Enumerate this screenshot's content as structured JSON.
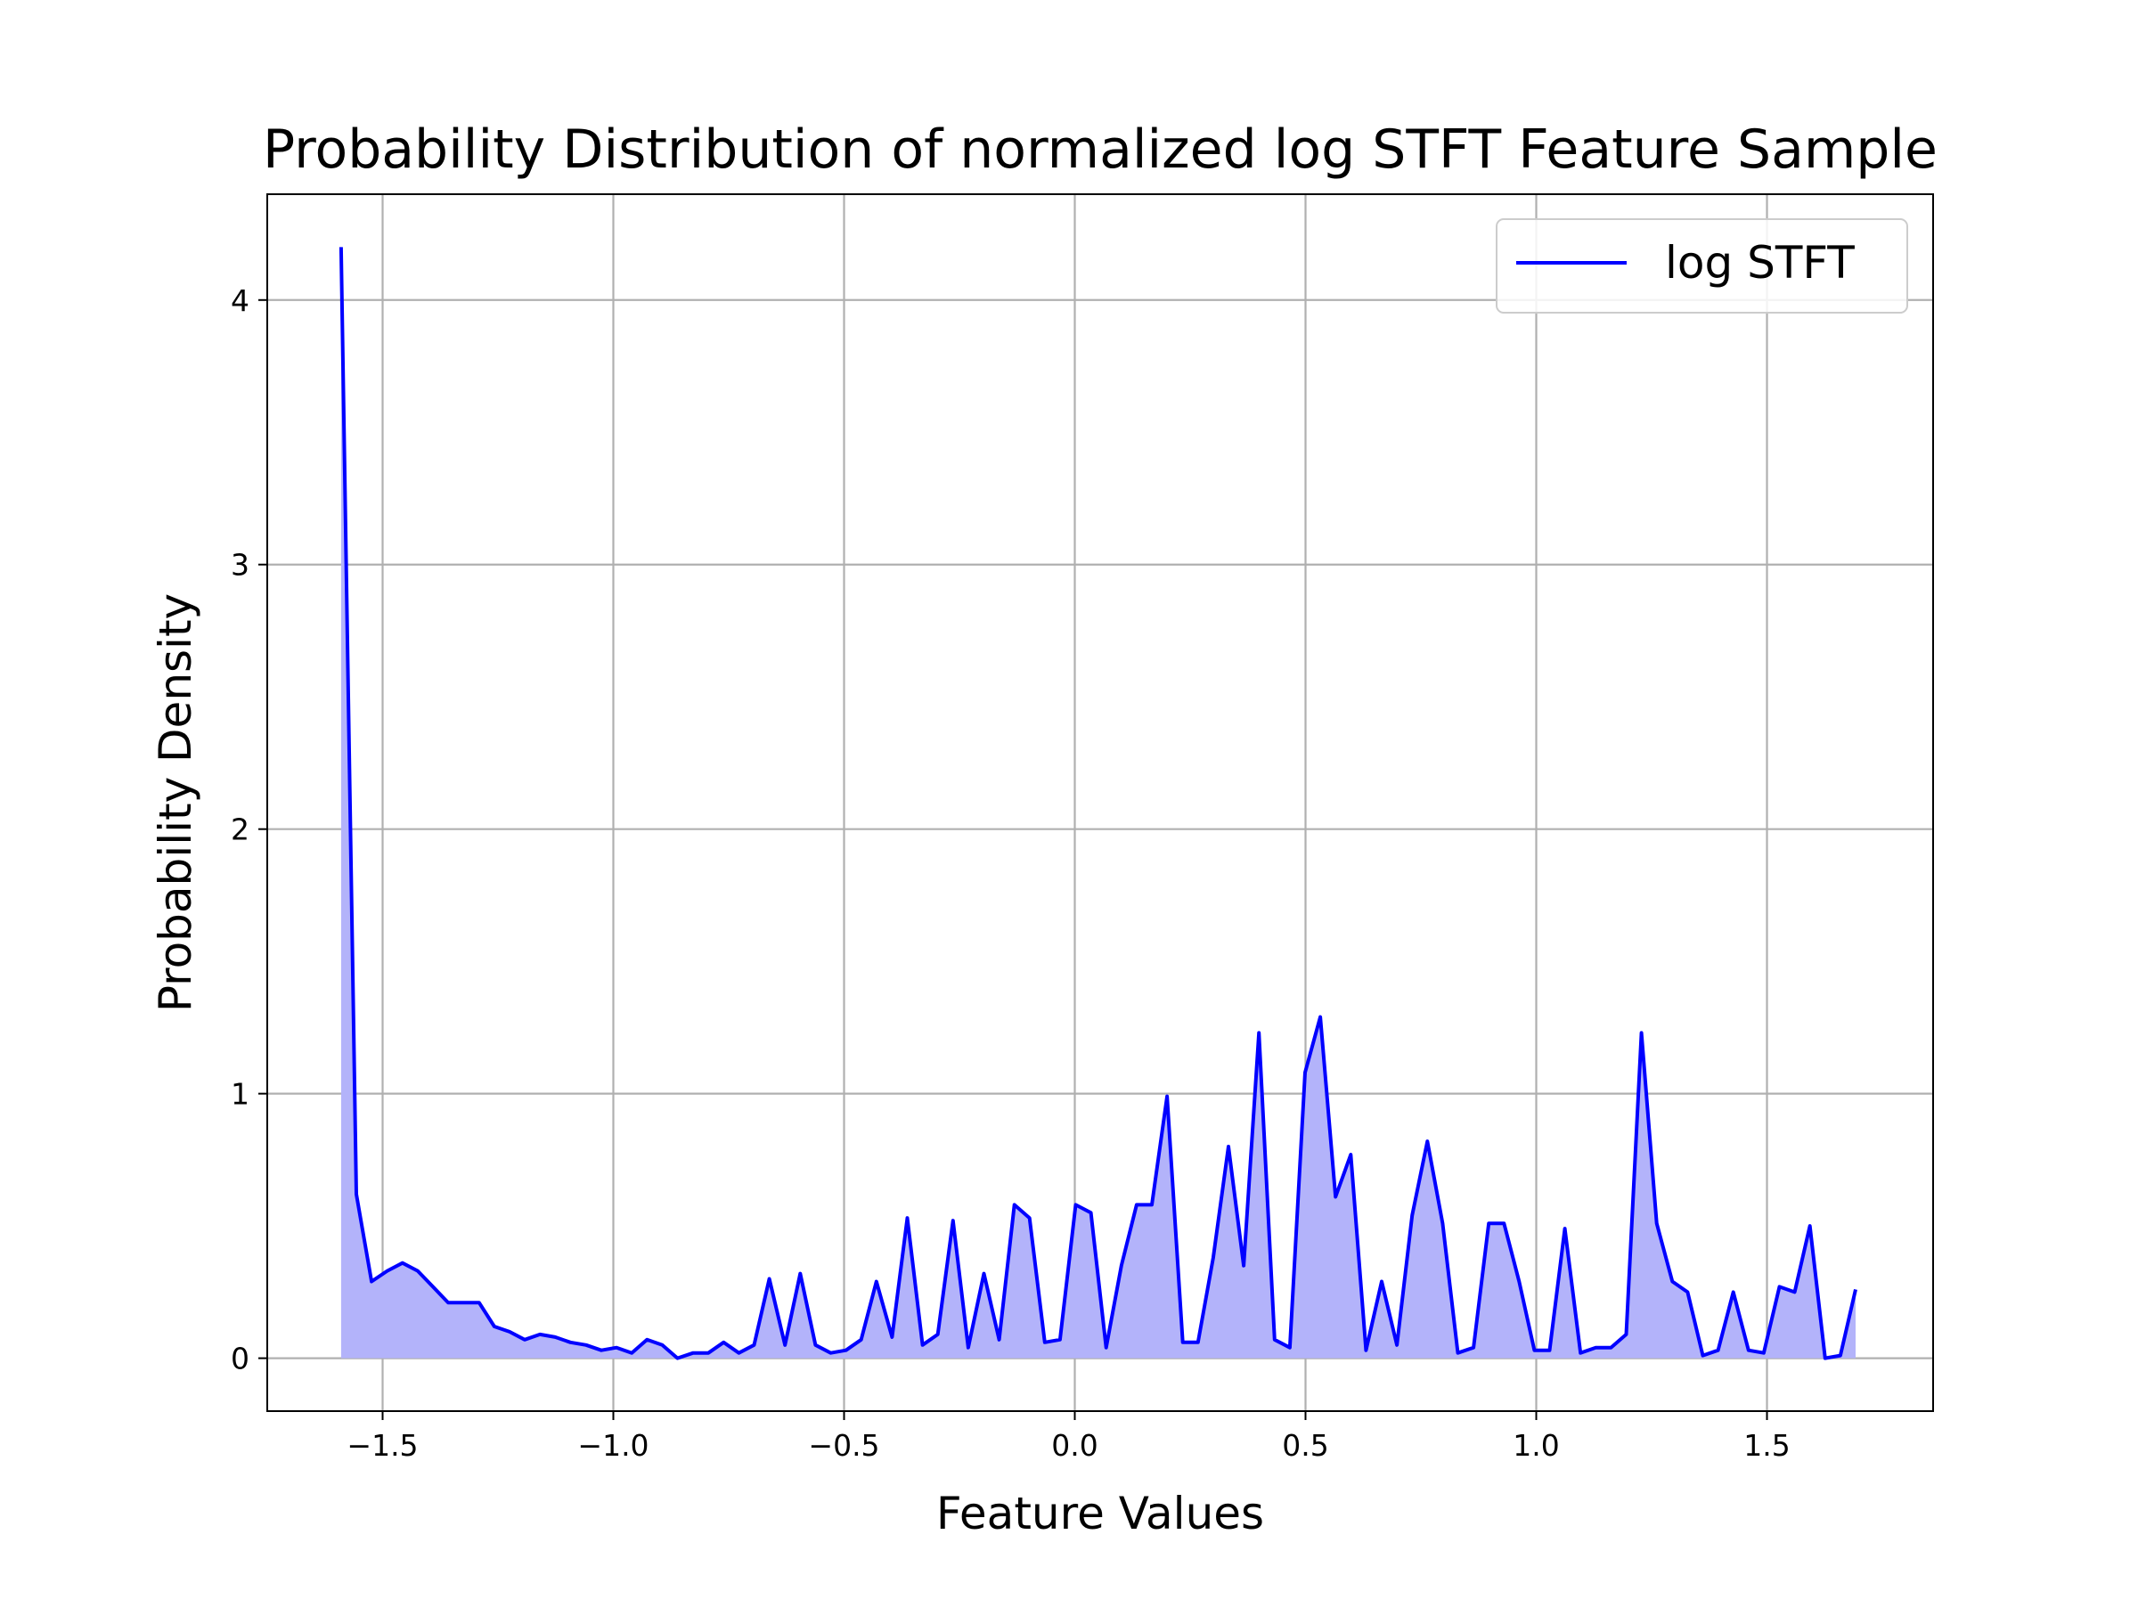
{
  "chart_data": {
    "type": "area",
    "title": "Probability Distribution of normalized log STFT Feature Sample",
    "xlabel": "Feature Values",
    "ylabel": "Probability Density",
    "xlim": [
      -1.75,
      1.86
    ],
    "ylim": [
      -0.2,
      4.4
    ],
    "xticks": [
      -1.5,
      -1.0,
      -0.5,
      0.0,
      0.5,
      1.0,
      1.5
    ],
    "xtick_labels": [
      "−1.5",
      "−1.0",
      "−0.5",
      "0.0",
      "0.5",
      "1.0",
      "1.5"
    ],
    "yticks": [
      0,
      1,
      2,
      3,
      4
    ],
    "ytick_labels": [
      "0",
      "1",
      "2",
      "3",
      "4"
    ],
    "grid": true,
    "legend_position": "top-right",
    "line_color": "#0000ff",
    "fill_color": "#b3b3fa",
    "series": [
      {
        "name": "log STFT",
        "x": [
          -1.59,
          -1.557,
          -1.524,
          -1.49,
          -1.457,
          -1.424,
          -1.391,
          -1.358,
          -1.325,
          -1.291,
          -1.258,
          -1.225,
          -1.192,
          -1.159,
          -1.126,
          -1.093,
          -1.059,
          -1.026,
          -0.993,
          -0.96,
          -0.927,
          -0.894,
          -0.861,
          -0.827,
          -0.794,
          -0.761,
          -0.728,
          -0.695,
          -0.662,
          -0.628,
          -0.595,
          -0.562,
          -0.529,
          -0.496,
          -0.463,
          -0.43,
          -0.396,
          -0.363,
          -0.33,
          -0.297,
          -0.264,
          -0.231,
          -0.197,
          -0.164,
          -0.131,
          -0.098,
          -0.065,
          -0.032,
          0.002,
          0.035,
          0.068,
          0.101,
          0.134,
          0.167,
          0.2,
          0.234,
          0.267,
          0.3,
          0.333,
          0.366,
          0.399,
          0.433,
          0.466,
          0.499,
          0.532,
          0.565,
          0.598,
          0.631,
          0.665,
          0.698,
          0.731,
          0.764,
          0.797,
          0.83,
          0.864,
          0.897,
          0.93,
          0.963,
          0.996,
          1.029,
          1.062,
          1.096,
          1.129,
          1.162,
          1.195,
          1.228,
          1.261,
          1.295,
          1.328,
          1.361,
          1.394,
          1.427,
          1.46,
          1.493,
          1.527,
          1.56,
          1.593,
          1.626,
          1.659,
          1.692
        ],
        "y": [
          4.2,
          0.62,
          0.29,
          0.33,
          0.36,
          0.33,
          0.27,
          0.21,
          0.21,
          0.21,
          0.12,
          0.1,
          0.07,
          0.09,
          0.08,
          0.06,
          0.05,
          0.03,
          0.04,
          0.02,
          0.07,
          0.05,
          0.0,
          0.02,
          0.02,
          0.06,
          0.02,
          0.05,
          0.3,
          0.05,
          0.32,
          0.05,
          0.02,
          0.03,
          0.07,
          0.29,
          0.08,
          0.53,
          0.05,
          0.09,
          0.52,
          0.04,
          0.32,
          0.07,
          0.58,
          0.53,
          0.06,
          0.07,
          0.58,
          0.55,
          0.04,
          0.35,
          0.58,
          0.58,
          0.99,
          0.06,
          0.06,
          0.38,
          0.8,
          0.35,
          1.23,
          0.07,
          0.04,
          1.08,
          1.29,
          0.61,
          0.77,
          0.03,
          0.29,
          0.05,
          0.54,
          0.82,
          0.51,
          0.02,
          0.04,
          0.51,
          0.51,
          0.29,
          0.03,
          0.03,
          0.49,
          0.02,
          0.04,
          0.04,
          0.09,
          1.23,
          0.51,
          0.29,
          0.25,
          0.01,
          0.03,
          0.25,
          0.03,
          0.02,
          0.27,
          0.25,
          0.5,
          0.0,
          0.01,
          0.26
        ]
      }
    ]
  }
}
